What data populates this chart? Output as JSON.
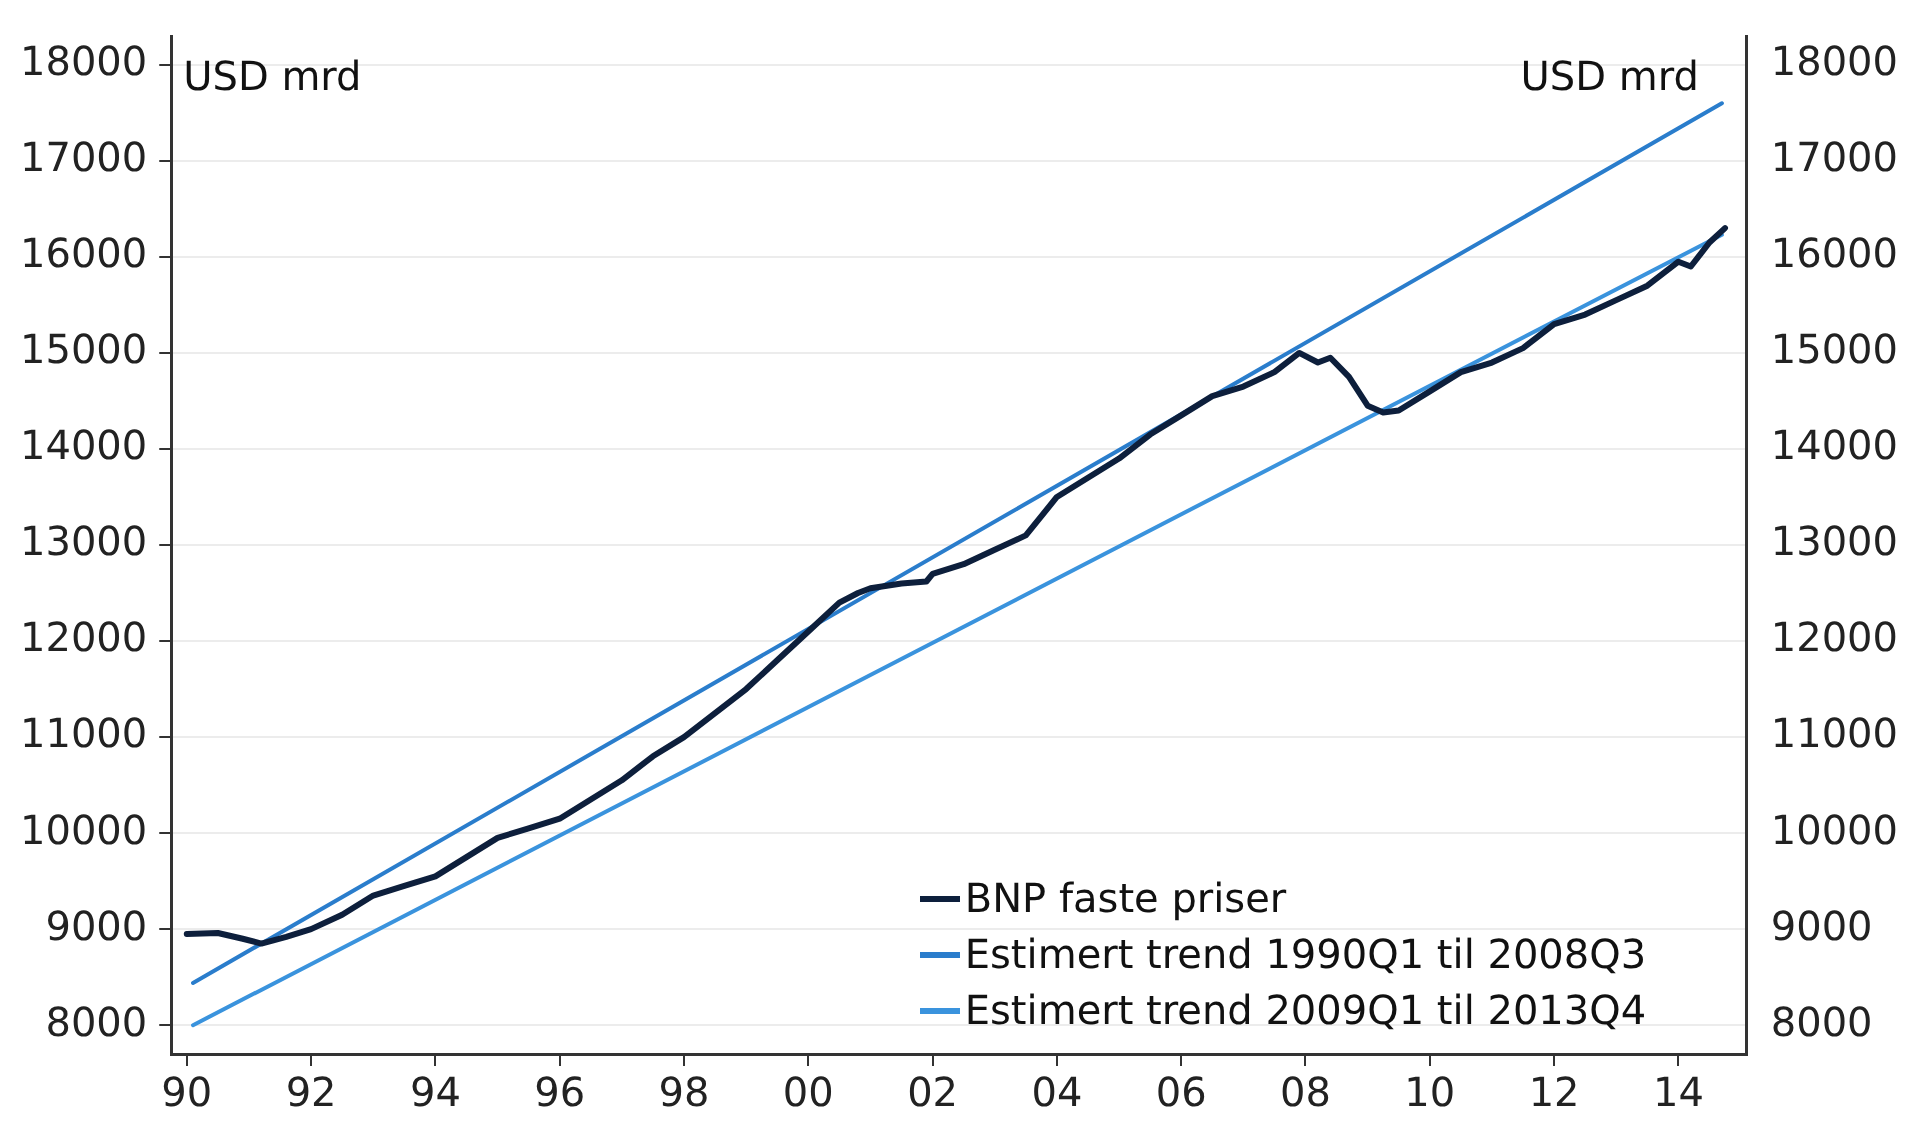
{
  "chart_data": {
    "type": "line",
    "ylabel": "USD mrd",
    "y2label": "USD mrd",
    "xlim": [
      1989.75,
      2015.1
    ],
    "xticks": [
      {
        "value": 1990,
        "label": "90"
      },
      {
        "value": 1992,
        "label": "92"
      },
      {
        "value": 1994,
        "label": "94"
      },
      {
        "value": 1996,
        "label": "96"
      },
      {
        "value": 1998,
        "label": "98"
      },
      {
        "value": 2000,
        "label": "00"
      },
      {
        "value": 2002,
        "label": "02"
      },
      {
        "value": 2004,
        "label": "04"
      },
      {
        "value": 2006,
        "label": "06"
      },
      {
        "value": 2008,
        "label": "08"
      },
      {
        "value": 2010,
        "label": "10"
      },
      {
        "value": 2012,
        "label": "12"
      },
      {
        "value": 2014,
        "label": "14"
      }
    ],
    "ylim": [
      7700,
      18300
    ],
    "yticks": [
      8000,
      9000,
      10000,
      11000,
      12000,
      13000,
      14000,
      15000,
      16000,
      17000,
      18000
    ],
    "y2lim": [
      7700,
      18300
    ],
    "y2ticks": [
      8000,
      9000,
      10000,
      11000,
      12000,
      13000,
      14000,
      15000,
      16000,
      17000,
      18000
    ],
    "grid": "y",
    "legend": "bottom right",
    "marker": "none",
    "line_style": "solid",
    "series": [
      {
        "name": "BNP faste priser",
        "color": "#0d1f3c",
        "x": [
          1990,
          1990.5,
          1990.9,
          1991.2,
          1991.6,
          1992,
          1992.5,
          1993,
          1993.5,
          1994,
          1994.5,
          1995,
          1995.5,
          1996,
          1996.5,
          1997,
          1997.5,
          1998,
          1998.5,
          1999,
          1999.5,
          2000,
          2000.5,
          2000.8,
          2001,
          2001.5,
          2001.9,
          2002,
          2002.5,
          2003,
          2003.5,
          2004,
          2004.5,
          2005,
          2005.5,
          2006,
          2006.5,
          2007,
          2007.5,
          2007.9,
          2008.2,
          2008.4,
          2008.7,
          2009,
          2009.25,
          2009.5,
          2010,
          2010.5,
          2011,
          2011.5,
          2012,
          2012.5,
          2013,
          2013.5,
          2014,
          2014.2,
          2014.5,
          2014.75
        ],
        "values": [
          8950,
          8960,
          8900,
          8850,
          8920,
          9000,
          9150,
          9350,
          9450,
          9550,
          9750,
          9950,
          10050,
          10150,
          10350,
          10550,
          10800,
          11000,
          11250,
          11500,
          11800,
          12100,
          12400,
          12500,
          12550,
          12600,
          12620,
          12700,
          12800,
          12950,
          13100,
          13500,
          13700,
          13900,
          14150,
          14350,
          14550,
          14650,
          14800,
          15000,
          14900,
          14950,
          14750,
          14450,
          14380,
          14400,
          14600,
          14800,
          14900,
          15050,
          15300,
          15400,
          15550,
          15700,
          15950,
          15900,
          16150,
          16300
        ]
      },
      {
        "name": "Estimert trend 1990Q1 til 2008Q3",
        "color": "#2a7dcc",
        "x": [
          1990.1,
          2014.7
        ],
        "values": [
          8440,
          17600
        ]
      },
      {
        "name": "Estimert trend 2009Q1 til 2013Q4",
        "color": "#3a93dd",
        "x": [
          1990.1,
          2014.7
        ],
        "values": [
          8000,
          16230
        ]
      }
    ]
  }
}
